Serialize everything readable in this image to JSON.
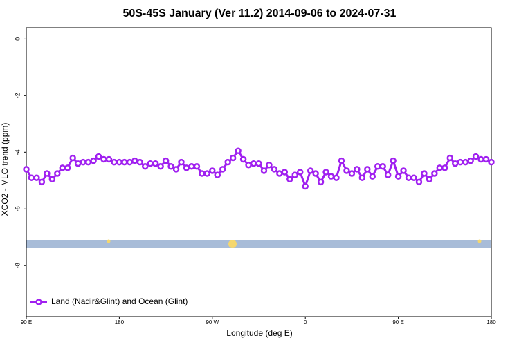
{
  "chart_data": {
    "type": "line",
    "title": "50S-45S January (Ver 11.2)   2014-09-06 to 2024-07-31",
    "x_label": "Longitude (deg E)",
    "y_label": "XCO2 - MLO trend (ppm)",
    "x": [
      90,
      95,
      100,
      105,
      110,
      115,
      120,
      125,
      130,
      135,
      140,
      145,
      150,
      155,
      160,
      165,
      170,
      175,
      180,
      185,
      190,
      195,
      200,
      205,
      210,
      215,
      220,
      225,
      230,
      235,
      240,
      245,
      250,
      255,
      260,
      265,
      270,
      275,
      280,
      285,
      290,
      295,
      300,
      305,
      310,
      315,
      320,
      325,
      330,
      335,
      340,
      345,
      350,
      355,
      360,
      365,
      370,
      375,
      380,
      385,
      390,
      395,
      400,
      405,
      410,
      415,
      420,
      425,
      430,
      435,
      440,
      445,
      450,
      455,
      460,
      465,
      470,
      475,
      480,
      485,
      490,
      495,
      500,
      505,
      510,
      515,
      520,
      525,
      530,
      535,
      540
    ],
    "series": [
      {
        "name": "Land (Nadir&Glint) and Ocean (Glint)",
        "color": "#a020f0",
        "values": [
          -4.6,
          -4.9,
          -4.9,
          -5.05,
          -4.75,
          -4.95,
          -4.75,
          -4.55,
          -4.55,
          -4.2,
          -4.4,
          -4.35,
          -4.35,
          -4.3,
          -4.15,
          -4.25,
          -4.25,
          -4.35,
          -4.35,
          -4.35,
          -4.35,
          -4.3,
          -4.35,
          -4.5,
          -4.4,
          -4.4,
          -4.5,
          -4.3,
          -4.5,
          -4.6,
          -4.35,
          -4.55,
          -4.5,
          -4.5,
          -4.75,
          -4.75,
          -4.65,
          -4.8,
          -4.6,
          -4.35,
          -4.2,
          -3.95,
          -4.25,
          -4.45,
          -4.4,
          -4.4,
          -4.65,
          -4.45,
          -4.6,
          -4.75,
          -4.7,
          -4.95,
          -4.8,
          -4.7,
          -5.2,
          -4.65,
          -4.75,
          -5.05,
          -4.7,
          -4.85,
          -4.9,
          -4.3,
          -4.65,
          -4.75,
          -4.6,
          -4.9,
          -4.6,
          -4.85,
          -4.5,
          -4.5,
          -4.8,
          -4.3,
          -4.85,
          -4.65,
          -4.9,
          -4.9,
          -5.05,
          -4.75,
          -4.95,
          -4.75,
          -4.55,
          -4.55,
          -4.2,
          -4.4,
          -4.35,
          -4.35,
          -4.3,
          -4.15,
          -4.25,
          -4.25,
          -4.35
        ]
      }
    ],
    "xlim": [
      90,
      540
    ],
    "xticks": [
      {
        "value": 90,
        "label": "90 E"
      },
      180,
      {
        "value": 270,
        "label": "90 W"
      },
      {
        "value": 360,
        "label": "0"
      },
      {
        "value": 450,
        "label": "90 E"
      },
      {
        "value": 540,
        "label": "180"
      }
    ],
    "ylim": [
      -9.8,
      0.4
    ],
    "yticks": [
      0,
      -2,
      -4,
      -6,
      -8
    ],
    "legend": "bottom-left"
  }
}
